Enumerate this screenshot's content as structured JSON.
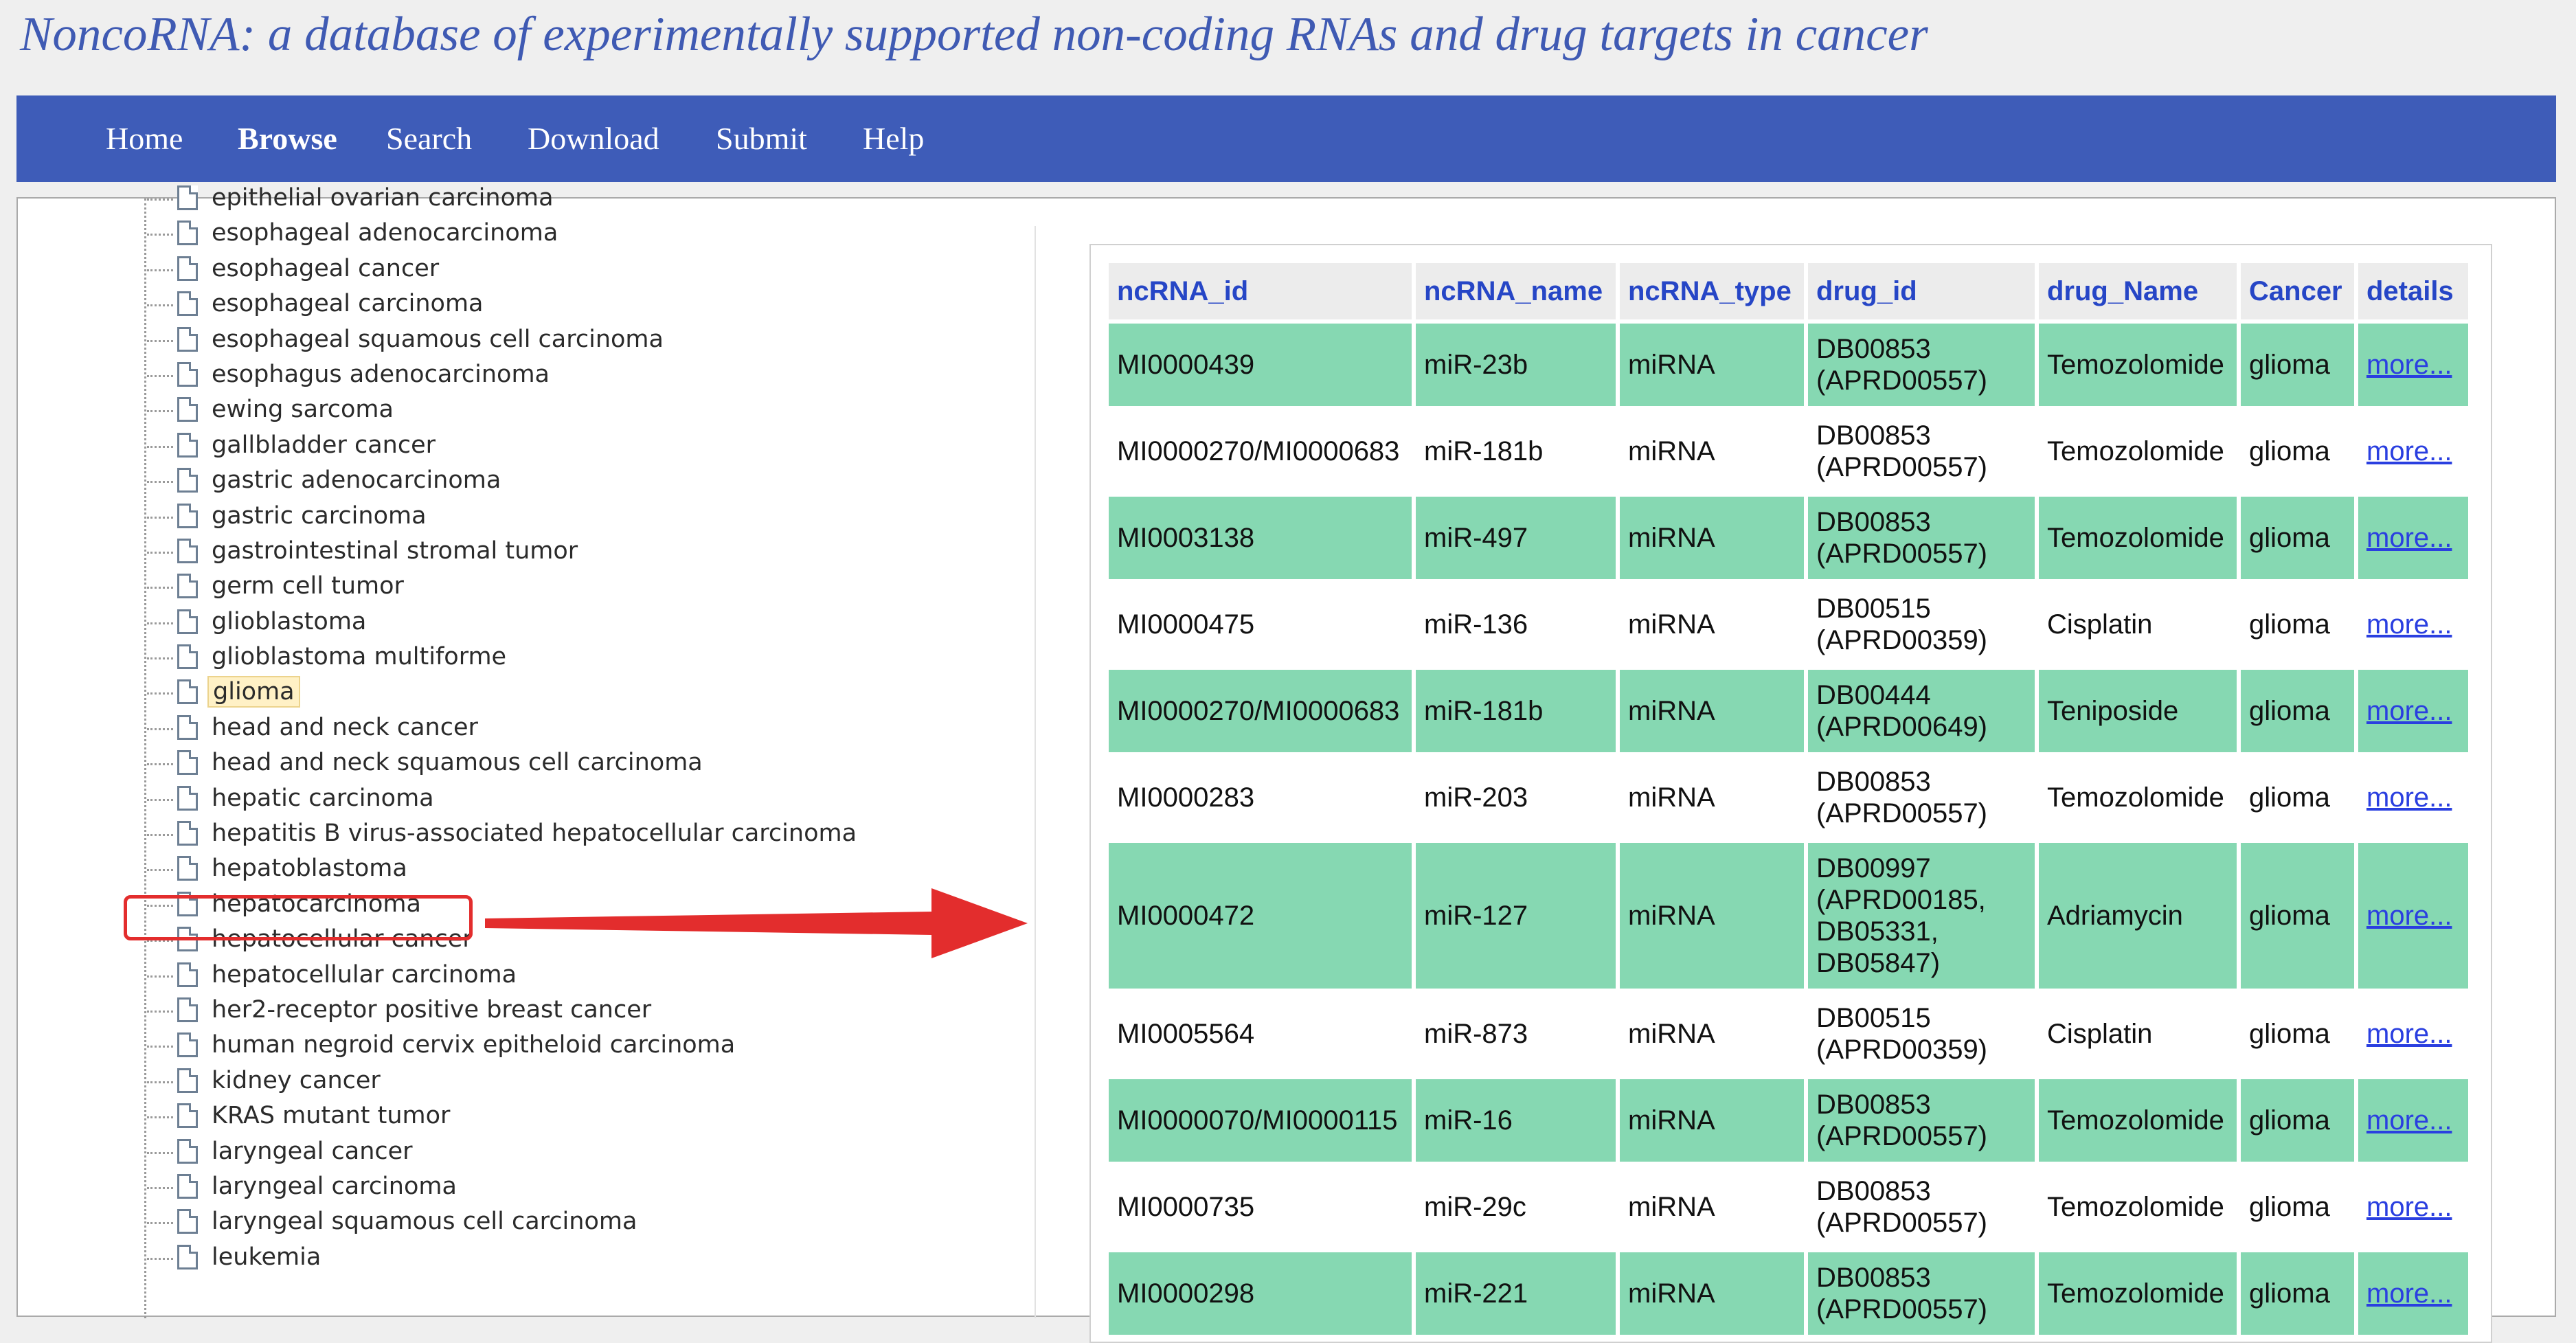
{
  "site": {
    "title": "NoncoRNA: a database of experimentally supported non-coding RNAs and drug targets in cancer"
  },
  "nav": {
    "items": [
      "Home",
      "Browse",
      "Search",
      "Download",
      "Submit",
      "Help"
    ],
    "active": "Browse"
  },
  "tree": {
    "items": [
      "epithelial ovarian carcinoma",
      "esophageal adenocarcinoma",
      "esophageal cancer",
      "esophageal carcinoma",
      "esophageal squamous cell carcinoma",
      "esophagus adenocarcinoma",
      "ewing sarcoma",
      "gallbladder cancer",
      "gastric adenocarcinoma",
      "gastric carcinoma",
      "gastrointestinal stromal tumor",
      "germ cell tumor",
      "glioblastoma",
      "glioblastoma multiforme",
      "glioma",
      "head and neck cancer",
      "head and neck squamous cell carcinoma",
      "hepatic carcinoma",
      "hepatitis B virus-associated hepatocellular carcinoma",
      "hepatoblastoma",
      "hepatocarcinoma",
      "hepatocellular cancer",
      "hepatocellular carcinoma",
      "her2-receptor positive breast cancer",
      "human negroid cervix epitheloid carcinoma",
      "kidney cancer",
      "KRAS mutant tumor",
      "laryngeal cancer",
      "laryngeal carcinoma",
      "laryngeal squamous cell carcinoma",
      "leukemia"
    ],
    "selected": "glioma"
  },
  "table": {
    "headers": [
      "ncRNA_id",
      "ncRNA_name",
      "ncRNA_type",
      "drug_id",
      "drug_Name",
      "Cancer",
      "details"
    ],
    "link_text": "more...",
    "rows": [
      {
        "ncRNA_id": "MI0000439",
        "ncRNA_name": "miR-23b",
        "ncRNA_type": "miRNA",
        "drug_id": "DB00853\n(APRD00557)",
        "drug_Name": "Temozolomide",
        "Cancer": "glioma"
      },
      {
        "ncRNA_id": "MI0000270/MI0000683",
        "ncRNA_name": "miR-181b",
        "ncRNA_type": "miRNA",
        "drug_id": "DB00853\n(APRD00557)",
        "drug_Name": "Temozolomide",
        "Cancer": "glioma"
      },
      {
        "ncRNA_id": "MI0003138",
        "ncRNA_name": "miR-497",
        "ncRNA_type": "miRNA",
        "drug_id": "DB00853\n(APRD00557)",
        "drug_Name": "Temozolomide",
        "Cancer": "glioma"
      },
      {
        "ncRNA_id": "MI0000475",
        "ncRNA_name": "miR-136",
        "ncRNA_type": "miRNA",
        "drug_id": "DB00515\n(APRD00359)",
        "drug_Name": "Cisplatin",
        "Cancer": "glioma"
      },
      {
        "ncRNA_id": "MI0000270/MI0000683",
        "ncRNA_name": "miR-181b",
        "ncRNA_type": "miRNA",
        "drug_id": "DB00444\n(APRD00649)",
        "drug_Name": "Teniposide",
        "Cancer": "glioma"
      },
      {
        "ncRNA_id": "MI0000283",
        "ncRNA_name": "miR-203",
        "ncRNA_type": "miRNA",
        "drug_id": "DB00853\n(APRD00557)",
        "drug_Name": "Temozolomide",
        "Cancer": "glioma"
      },
      {
        "ncRNA_id": "MI0000472",
        "ncRNA_name": "miR-127",
        "ncRNA_type": "miRNA",
        "drug_id": "DB00997\n(APRD00185,\nDB05331,\nDB05847)",
        "drug_Name": "Adriamycin",
        "Cancer": "glioma"
      },
      {
        "ncRNA_id": "MI0005564",
        "ncRNA_name": "miR-873",
        "ncRNA_type": "miRNA",
        "drug_id": "DB00515\n(APRD00359)",
        "drug_Name": "Cisplatin",
        "Cancer": "glioma"
      },
      {
        "ncRNA_id": "MI0000070/MI0000115",
        "ncRNA_name": "miR-16",
        "ncRNA_type": "miRNA",
        "drug_id": "DB00853\n(APRD00557)",
        "drug_Name": "Temozolomide",
        "Cancer": "glioma"
      },
      {
        "ncRNA_id": "MI0000735",
        "ncRNA_name": "miR-29c",
        "ncRNA_type": "miRNA",
        "drug_id": "DB00853\n(APRD00557)",
        "drug_Name": "Temozolomide",
        "Cancer": "glioma"
      },
      {
        "ncRNA_id": "MI0000298",
        "ncRNA_name": "miR-221",
        "ncRNA_type": "miRNA",
        "drug_id": "DB00853\n(APRD00557)",
        "drug_Name": "Temozolomide",
        "Cancer": "glioma"
      }
    ]
  },
  "colors": {
    "nav_bg": "#3e5cb8",
    "title": "#3f5ab3",
    "row_green": "#86d8b2",
    "header_text": "#2646c6",
    "annotation_red": "#e32d2d"
  }
}
